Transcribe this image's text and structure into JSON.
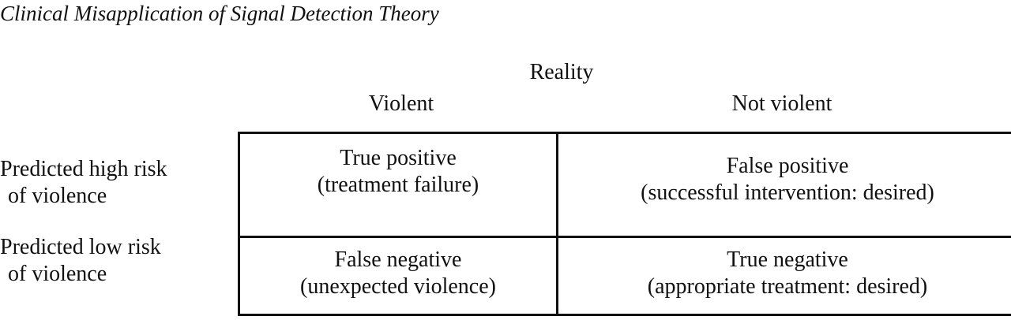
{
  "title": "Clinical Misapplication of Signal Detection Theory",
  "header": {
    "group": "Reality",
    "columns": [
      "Violent",
      "Not violent"
    ]
  },
  "rows": [
    {
      "label_line1": "Predicted high risk",
      "label_line2": "of violence",
      "cells": [
        {
          "line1": "True positive",
          "line2": "(treatment failure)"
        },
        {
          "line1": "False positive",
          "line2": "(successful intervention: desired)"
        }
      ]
    },
    {
      "label_line1": "Predicted low risk",
      "label_line2": "of violence",
      "cells": [
        {
          "line1": "False negative",
          "line2": "(unexpected violence)"
        },
        {
          "line1": "True negative",
          "line2": "(appropriate treatment: desired)"
        }
      ]
    }
  ]
}
